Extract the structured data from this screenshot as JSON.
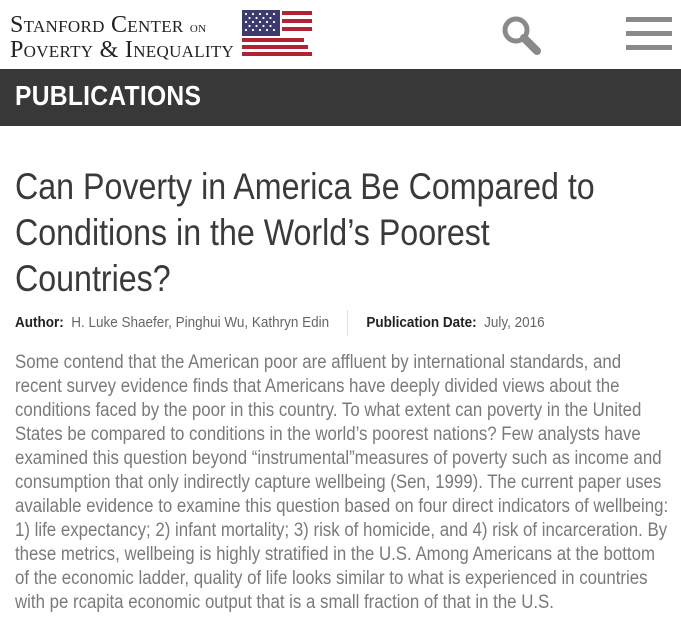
{
  "header": {
    "logo_line1_main": "Stanford Center",
    "logo_line1_small": "on",
    "logo_line2": "Poverty & Inequality",
    "search_icon": "search-icon",
    "menu_icon": "hamburger-menu-icon"
  },
  "section": {
    "title": "PUBLICATIONS"
  },
  "article": {
    "title": "Can Poverty in America Be Compared to Conditions in the World’s Poorest Countries?",
    "title_lines": [
      "Can Poverty in America Be Compared to",
      "Conditions in the World’s Poorest",
      "Countries?"
    ],
    "author_label": "Author:",
    "authors": "H. Luke Shaefer, Pinghui Wu, Kathryn Edin",
    "date_label": "Publication Date:",
    "date": "July, 2016",
    "abstract": "Some contend that the American poor are affluent by international standards, and recent survey evidence finds that Americans have deeply divided views about the conditions faced by the poor in this country. To what extent can poverty in the United States be compared to conditions in the world’s poorest nations? Few analysts have examined this question beyond “instrumental”measures of poverty such as income and consumption that only indirectly capture wellbeing (Sen, 1999). The current paper uses available evidence to examine this question based on four direct indicators of wellbeing: 1) life expectancy; 2) infant mortality; 3) risk of homicide, and 4) risk of incarceration. By these metrics, wellbeing is highly stratified in the U.S. Among Americans at the bottom of the economic ladder, quality of life looks similar to what is experienced in countries with pe rcapita economic output that is a small fraction of that in the U.S."
  },
  "colors": {
    "section_bar": "#383838",
    "title_text": "#3a3a3a",
    "abstract_text": "#7a7a7a",
    "flag_red": "#b22234",
    "flag_blue": "#3c3b6e"
  }
}
